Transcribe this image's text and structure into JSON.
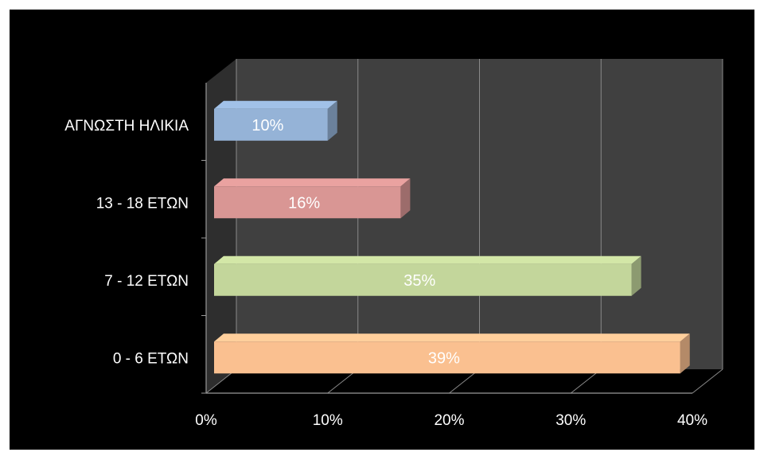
{
  "chart_data": {
    "type": "bar",
    "orientation": "horizontal",
    "style": "3d",
    "categories": [
      "0 - 6 ΕΤΩΝ",
      "7 - 12 ΕΤΩΝ",
      "13 - 18 ΕΤΩΝ",
      "ΑΓΝΩΣΤΗ ΗΛΙΚΙΑ"
    ],
    "values": [
      39,
      35,
      16,
      10
    ],
    "data_labels": [
      "39%",
      "35%",
      "16%",
      "10%"
    ],
    "colors": [
      "#fac090",
      "#c3d69b",
      "#d99694",
      "#95b3d7"
    ],
    "title": "",
    "xlabel": "",
    "ylabel": "",
    "xlim": [
      0,
      40
    ],
    "x_ticks": [
      0,
      10,
      20,
      30,
      40
    ],
    "x_tick_labels": [
      "0%",
      "10%",
      "20%",
      "30%",
      "40%"
    ],
    "grid": true,
    "legend": "none",
    "background": "#000000",
    "plot_wall": "#404040"
  }
}
